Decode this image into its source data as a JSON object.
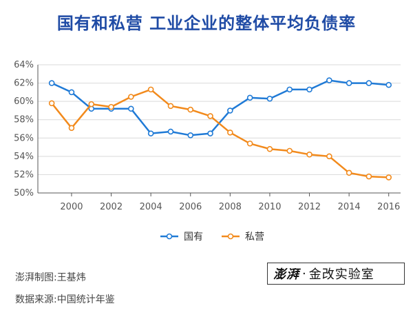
{
  "title": "国有和私营 工业企业的整体平均负债率",
  "credit": "澎湃制图:王基炜",
  "source": "数据来源:中国统计年鉴",
  "brand": {
    "logo_text": "澎湃",
    "dot": "·",
    "name": "金改实验室"
  },
  "chart_data": {
    "type": "line",
    "title": "国有和私营 工业企业的整体平均负债率",
    "xlabel": "",
    "ylabel": "",
    "x": [
      1999,
      2000,
      2001,
      2002,
      2003,
      2004,
      2005,
      2006,
      2007,
      2008,
      2009,
      2010,
      2011,
      2012,
      2013,
      2014,
      2015,
      2016
    ],
    "xlim": [
      1998.3,
      2016.6
    ],
    "ylim": [
      50,
      64
    ],
    "xticks": [
      2000,
      2002,
      2004,
      2006,
      2008,
      2010,
      2012,
      2014,
      2016
    ],
    "yticks": [
      50,
      52,
      54,
      56,
      58,
      60,
      62,
      64
    ],
    "ytick_labels": [
      "50%",
      "52%",
      "54%",
      "56%",
      "58%",
      "60%",
      "62%",
      "64%"
    ],
    "grid": "horizontal",
    "legend_position": "bottom",
    "series": [
      {
        "name": "国有",
        "color": "#1f7ad6",
        "values": [
          62.0,
          61.0,
          59.2,
          59.2,
          59.2,
          56.5,
          56.7,
          56.3,
          56.5,
          59.0,
          60.4,
          60.3,
          61.3,
          61.3,
          62.3,
          62.0,
          62.0,
          61.8
        ]
      },
      {
        "name": "私营",
        "color": "#f28a1c",
        "values": [
          59.8,
          57.1,
          59.7,
          59.4,
          60.5,
          61.3,
          59.5,
          59.1,
          58.4,
          56.6,
          55.4,
          54.8,
          54.6,
          54.2,
          54.0,
          52.2,
          51.8,
          51.7
        ]
      }
    ]
  }
}
